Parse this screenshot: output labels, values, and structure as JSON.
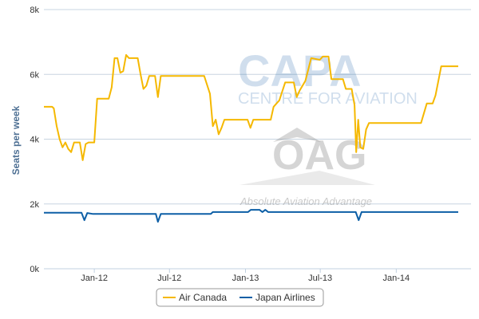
{
  "chart_data": {
    "type": "line",
    "title": "",
    "xlabel": "",
    "ylabel": "Seats per week",
    "x_start": "2011-09",
    "x_end": "2014-07",
    "ylim": [
      0,
      8000
    ],
    "yticks": [
      {
        "value": 0,
        "label": "0k"
      },
      {
        "value": 2000,
        "label": "2k"
      },
      {
        "value": 4000,
        "label": "4k"
      },
      {
        "value": 6000,
        "label": "6k"
      },
      {
        "value": 8000,
        "label": "8k"
      }
    ],
    "xticks": [
      {
        "date": "2012-01",
        "label": "Jan-12"
      },
      {
        "date": "2012-07",
        "label": "Jul-12"
      },
      {
        "date": "2013-01",
        "label": "Jan-13"
      },
      {
        "date": "2013-07",
        "label": "Jul-13"
      },
      {
        "date": "2014-01",
        "label": "Jan-14"
      }
    ],
    "grid": "horizontal",
    "legend_position": "bottom-center",
    "series": [
      {
        "name": "Air Canada",
        "color": "#f5b800",
        "points": [
          [
            "2011-09-01",
            5000
          ],
          [
            "2011-09-21",
            5000
          ],
          [
            "2011-09-25",
            4950
          ],
          [
            "2011-10-02",
            4400
          ],
          [
            "2011-10-09",
            4000
          ],
          [
            "2011-10-16",
            3750
          ],
          [
            "2011-10-23",
            3900
          ],
          [
            "2011-10-30",
            3700
          ],
          [
            "2011-11-06",
            3600
          ],
          [
            "2011-11-13",
            3900
          ],
          [
            "2011-11-27",
            3900
          ],
          [
            "2011-12-04",
            3350
          ],
          [
            "2011-12-11",
            3850
          ],
          [
            "2011-12-18",
            3900
          ],
          [
            "2012-01-01",
            3900
          ],
          [
            "2012-01-08",
            5250
          ],
          [
            "2012-02-05",
            5250
          ],
          [
            "2012-02-12",
            5600
          ],
          [
            "2012-02-19",
            6500
          ],
          [
            "2012-02-26",
            6500
          ],
          [
            "2012-03-04",
            6050
          ],
          [
            "2012-03-11",
            6100
          ],
          [
            "2012-03-18",
            6600
          ],
          [
            "2012-03-25",
            6500
          ],
          [
            "2012-04-15",
            6500
          ],
          [
            "2012-04-22",
            6000
          ],
          [
            "2012-04-29",
            5550
          ],
          [
            "2012-05-06",
            5650
          ],
          [
            "2012-05-13",
            5950
          ],
          [
            "2012-05-27",
            5950
          ],
          [
            "2012-06-03",
            5300
          ],
          [
            "2012-06-10",
            5950
          ],
          [
            "2012-09-23",
            5950
          ],
          [
            "2012-10-07",
            5400
          ],
          [
            "2012-10-14",
            4400
          ],
          [
            "2012-10-21",
            4600
          ],
          [
            "2012-10-28",
            4150
          ],
          [
            "2012-11-04",
            4350
          ],
          [
            "2012-11-11",
            4600
          ],
          [
            "2013-01-06",
            4600
          ],
          [
            "2013-01-13",
            4350
          ],
          [
            "2013-01-20",
            4600
          ],
          [
            "2013-03-03",
            4600
          ],
          [
            "2013-03-10",
            5000
          ],
          [
            "2013-03-24",
            5200
          ],
          [
            "2013-04-07",
            5750
          ],
          [
            "2013-04-28",
            5750
          ],
          [
            "2013-05-05",
            5300
          ],
          [
            "2013-05-12",
            5500
          ],
          [
            "2013-05-26",
            5800
          ],
          [
            "2013-06-09",
            6500
          ],
          [
            "2013-06-30",
            6450
          ],
          [
            "2013-07-07",
            6550
          ],
          [
            "2013-07-21",
            6550
          ],
          [
            "2013-07-28",
            5850
          ],
          [
            "2013-08-11",
            5850
          ],
          [
            "2013-08-25",
            5850
          ],
          [
            "2013-09-01",
            5550
          ],
          [
            "2013-09-15",
            5550
          ],
          [
            "2013-09-22",
            5050
          ],
          [
            "2013-09-26",
            3600
          ],
          [
            "2013-10-01",
            4600
          ],
          [
            "2013-10-06",
            3750
          ],
          [
            "2013-10-13",
            3700
          ],
          [
            "2013-10-20",
            4300
          ],
          [
            "2013-10-27",
            4500
          ],
          [
            "2014-03-02",
            4500
          ],
          [
            "2014-03-16",
            5100
          ],
          [
            "2014-03-30",
            5100
          ],
          [
            "2014-04-06",
            5350
          ],
          [
            "2014-04-13",
            5800
          ],
          [
            "2014-04-20",
            6250
          ],
          [
            "2014-05-31",
            6250
          ]
        ]
      },
      {
        "name": "Japan Airlines",
        "color": "#0d5fa6",
        "points": [
          [
            "2011-09-01",
            1730
          ],
          [
            "2011-12-01",
            1730
          ],
          [
            "2011-12-08",
            1500
          ],
          [
            "2011-12-15",
            1720
          ],
          [
            "2011-12-29",
            1690
          ],
          [
            "2012-05-29",
            1690
          ],
          [
            "2012-06-03",
            1450
          ],
          [
            "2012-06-10",
            1690
          ],
          [
            "2012-10-09",
            1690
          ],
          [
            "2012-10-14",
            1750
          ],
          [
            "2013-01-07",
            1750
          ],
          [
            "2013-01-14",
            1820
          ],
          [
            "2013-02-04",
            1820
          ],
          [
            "2013-02-11",
            1750
          ],
          [
            "2013-02-18",
            1820
          ],
          [
            "2013-02-25",
            1750
          ],
          [
            "2013-09-25",
            1750
          ],
          [
            "2013-10-02",
            1500
          ],
          [
            "2013-10-09",
            1750
          ],
          [
            "2014-05-31",
            1750
          ]
        ]
      }
    ]
  },
  "watermark": {
    "capa": "CAPA",
    "centre": "CENTRE FOR AVIATION",
    "oag": "OAG",
    "tagline": "Absolute Aviation Advantage"
  }
}
